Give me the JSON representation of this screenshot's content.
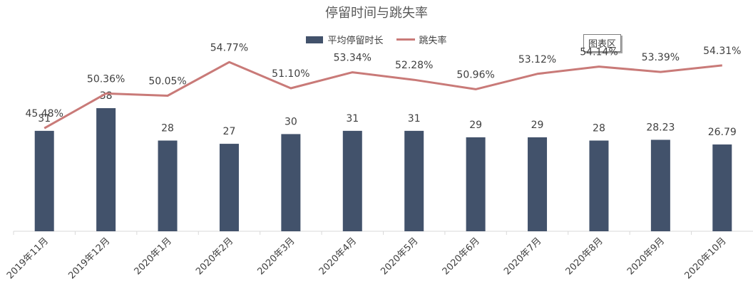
{
  "chart_area_badge": "图表区",
  "colors": {
    "bar": "#42526b",
    "line": "#c97a78",
    "axis": "#d9d9d9",
    "text": "#404040"
  },
  "chart_data": {
    "type": "bar",
    "title": "停留时间与跳失率",
    "categories": [
      "2019年11月",
      "2019年12月",
      "2020年1月",
      "2020年2月",
      "2020年3月",
      "2020年4月",
      "2020年5月",
      "2020年6月",
      "2020年7月",
      "2020年8月",
      "2020年9月",
      "2020年10月"
    ],
    "series": [
      {
        "name": "平均停留时长",
        "kind": "bar",
        "values": [
          31,
          38,
          28,
          27,
          30,
          31,
          31,
          29,
          29,
          28,
          28.23,
          26.79
        ],
        "labels": [
          "31",
          "38",
          "28",
          "27",
          "30",
          "31",
          "31",
          "29",
          "29",
          "28",
          "28.23",
          "26.79"
        ]
      },
      {
        "name": "跳失率",
        "kind": "line",
        "values": [
          45.48,
          50.36,
          50.05,
          54.77,
          51.1,
          53.34,
          52.28,
          50.96,
          53.12,
          54.14,
          53.39,
          54.31
        ],
        "labels": [
          "45.48%",
          "50.36%",
          "50.05%",
          "54.77%",
          "51.10%",
          "53.34%",
          "52.28%",
          "50.96%",
          "53.12%",
          "54.14%",
          "53.39%",
          "54.31%"
        ]
      }
    ],
    "legend_position": "top-center",
    "grid": false
  }
}
